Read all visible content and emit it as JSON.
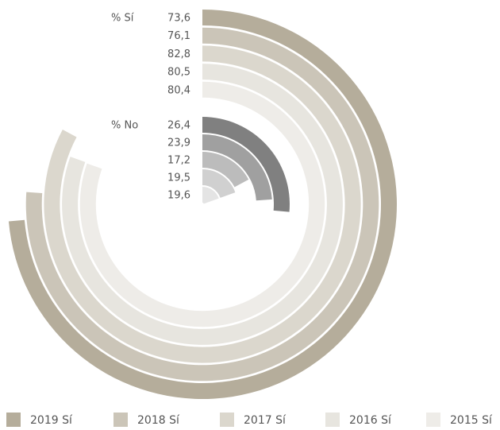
{
  "chart_data": {
    "type": "radial_bar",
    "groups": [
      {
        "label": "% Sí",
        "series": [
          {
            "name": "2019 Sí",
            "color": "#b5ad9b",
            "value": 73.6,
            "value_label": "73,6"
          },
          {
            "name": "2018 Sí",
            "color": "#cbc5b8",
            "value": 76.1,
            "value_label": "76,1"
          },
          {
            "name": "2017 Sí",
            "color": "#dbd7cd",
            "value": 82.8,
            "value_label": "82,8"
          },
          {
            "name": "2016 Sí",
            "color": "#e7e5df",
            "value": 80.5,
            "value_label": "80,5"
          },
          {
            "name": "2015 Sí",
            "color": "#eeece8",
            "value": 80.4,
            "value_label": "80,4"
          }
        ]
      },
      {
        "label": "% No",
        "series": [
          {
            "color": "#808080",
            "value": 26.4,
            "value_label": "26,4"
          },
          {
            "color": "#a0a0a0",
            "value": 23.9,
            "value_label": "23,9"
          },
          {
            "color": "#bcbcbc",
            "value": 17.2,
            "value_label": "17,2"
          },
          {
            "color": "#d0d0d0",
            "value": 19.5,
            "value_label": "19,5"
          },
          {
            "color": "#e4e4e4",
            "value": 19.6,
            "value_label": "19,6"
          }
        ]
      }
    ]
  }
}
